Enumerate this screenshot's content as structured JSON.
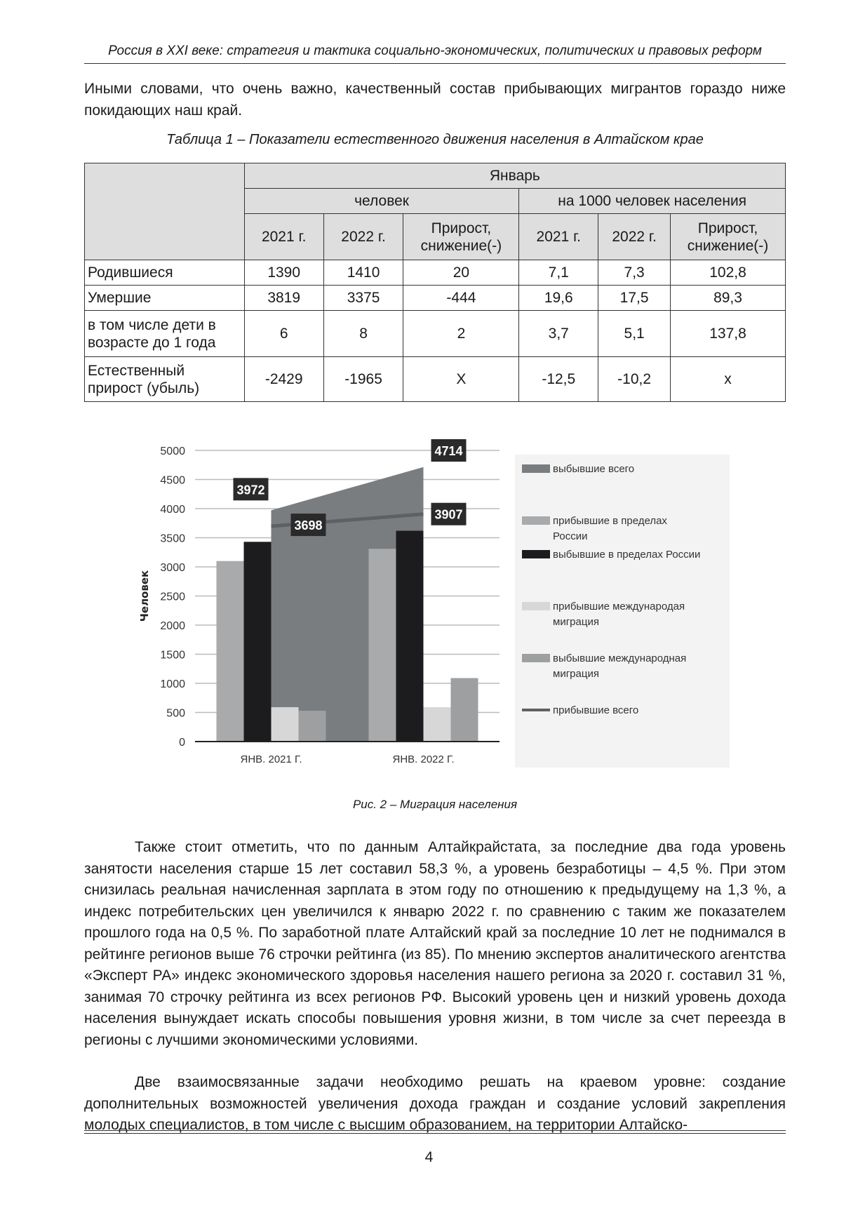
{
  "header": "Россия в XXI веке: стратегия и тактика социально-экономических, политических и правовых реформ",
  "intro": "Иными словами, что очень важно, качественный состав прибывающих мигрантов гораздо ниже покидающих наш край.",
  "table": {
    "caption": "Таблица 1 – Показатели естественного движения населения в Алтайском крае",
    "group": "Январь",
    "sub1": "человек",
    "sub2": "на 1000 человек населения",
    "cols": [
      "2021 г.",
      "2022 г.",
      "Прирост, снижение(-)",
      "2021 г.",
      "2022 г.",
      "Прирост, снижение(-)"
    ],
    "rows": [
      {
        "label": "Родившиеся",
        "values": [
          "1390",
          "1410",
          "20",
          "7,1",
          "7,3",
          "102,8"
        ]
      },
      {
        "label": "Умершие",
        "values": [
          "3819",
          "3375",
          "-444",
          "19,6",
          "17,5",
          "89,3"
        ]
      },
      {
        "label": "в том числе дети в возрасте до 1 года",
        "values": [
          "6",
          "8",
          "2",
          "3,7",
          "5,1",
          "137,8"
        ]
      },
      {
        "label": "Естественный прирост (убыль)",
        "values": [
          "-2429",
          "-1965",
          "X",
          "-12,5",
          "-10,2",
          "x"
        ]
      }
    ]
  },
  "chart_data": {
    "type": "bar",
    "title": "",
    "ylabel": "Человек",
    "xlabel": "",
    "ylim": [
      0,
      5000
    ],
    "yticks": [
      "0",
      "500",
      "1000",
      "1500",
      "2000",
      "2500",
      "3000",
      "3500",
      "4000",
      "4500",
      "5000"
    ],
    "categories": [
      "ЯНВ. 2021 Г.",
      "ЯНВ. 2022 Г."
    ],
    "grid": true,
    "legend_position": "right",
    "series": [
      {
        "name": "выбывшие всего",
        "kind": "area",
        "values": [
          3972,
          4714
        ],
        "labels": [
          "3972",
          "4714"
        ],
        "color": "#7a7d80"
      },
      {
        "name": "прибывшие в пределах России",
        "kind": "bar",
        "values": [
          3100,
          3310
        ],
        "color": "#a9aaab"
      },
      {
        "name": "выбывшие в пределах России",
        "kind": "bar",
        "values": [
          3430,
          3620
        ],
        "color": "#1c1c1e"
      },
      {
        "name": "прибывшие международая миграция",
        "kind": "bar",
        "values": [
          590,
          590
        ],
        "color": "#d6d7d6"
      },
      {
        "name": "выбывшие международная миграция",
        "kind": "bar",
        "values": [
          530,
          1090
        ],
        "color": "#9d9fa1"
      },
      {
        "name": "прибывшие всего",
        "kind": "line",
        "values": [
          3698,
          3907
        ],
        "labels": [
          "3698",
          "3907"
        ],
        "color": "#5e6063"
      }
    ],
    "caption": "Рис. 2 – Миграция населения"
  },
  "body": [
    "Также стоит отметить, что по данным Алтайкрайстата, за последние два года уровень занятости населения старше 15 лет составил 58,3 %, а уровень безработицы – 4,5 %. При этом снизилась реальная начисленная зарплата в этом году по отношению к предыдущему на 1,3 %, а индекс потребительских цен увеличился к январю 2022 г. по сравнению с таким же показателем прошлого года на 0,5 %. По заработной плате Алтайский край за последние 10 лет не поднимался в рейтинге регионов выше 76 строчки рейтинга (из 85). По мнению экспертов аналитического агентства «Эксперт РА» индекс экономического здоровья населения нашего региона за 2020 г. составил 31 %, занимая 70 строчку рейтинга из всех регионов РФ. Высокий уровень цен и низкий уровень дохода населения вынуждает искать способы повышения уровня жизни, в том числе за счет переезда в регионы с лучшими экономическими условиями.",
    "Две взаимосвязанные задачи необходимо решать на краевом уровне: создание дополнительных возможностей увеличения дохода граждан и создание условий закрепления молодых специалистов, в том числе с высшим образованием, на территории Алтайско-"
  ],
  "page_number": "4"
}
